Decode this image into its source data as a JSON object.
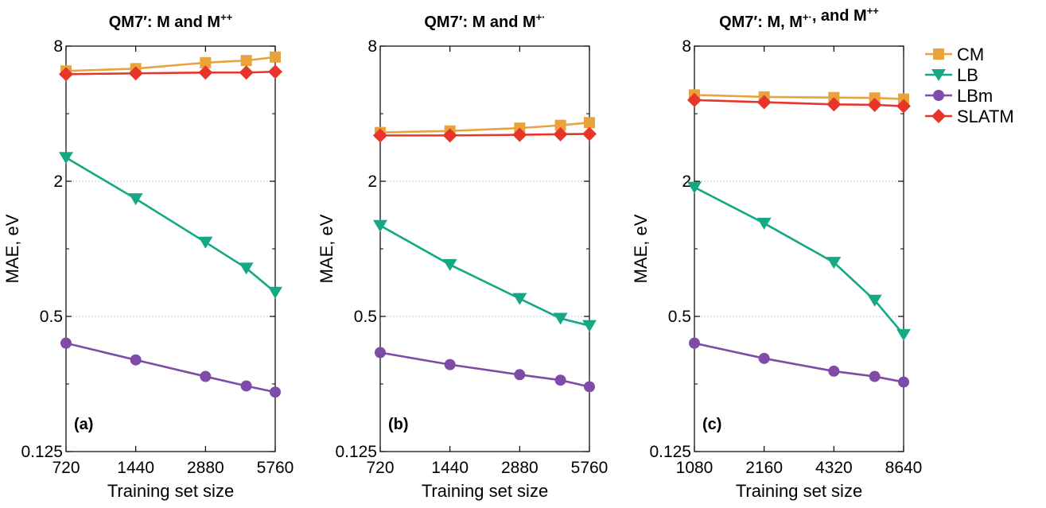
{
  "chart_data": [
    {
      "type": "line",
      "title": "QM7′: M and M++",
      "title_main": "QM7′: M and M",
      "title_sup": "++",
      "panel_label": "(a)",
      "xlabel": "Training set size",
      "ylabel": "MAE, eV",
      "xscale": "log",
      "yscale": "log",
      "xticks": [
        720,
        1440,
        2880,
        5760
      ],
      "yticks": [
        0.125,
        0.5,
        2,
        8
      ],
      "ytick_labels": [
        "0.125",
        "0.5",
        "2",
        "8"
      ],
      "xlim": [
        720,
        5760
      ],
      "ylim": [
        0.125,
        8
      ],
      "grid": "horizontal dotted at 0.5 and 2",
      "x": [
        720,
        1440,
        2880,
        4320,
        5760
      ],
      "series": [
        {
          "name": "CM",
          "values": [
            6.2,
            6.35,
            6.75,
            6.9,
            7.15
          ]
        },
        {
          "name": "LB",
          "values": [
            2.55,
            1.67,
            1.07,
            0.82,
            0.64
          ]
        },
        {
          "name": "LBm",
          "values": [
            0.38,
            0.32,
            0.27,
            0.245,
            0.23
          ]
        },
        {
          "name": "SLATM",
          "values": [
            6.0,
            6.05,
            6.1,
            6.1,
            6.15
          ]
        }
      ]
    },
    {
      "type": "line",
      "title": "QM7′: M and M+·",
      "title_main": "QM7′: M and M",
      "title_sup": "+·",
      "panel_label": "(b)",
      "xlabel": "Training set size",
      "ylabel": "MAE, eV",
      "xscale": "log",
      "yscale": "log",
      "xticks": [
        720,
        1440,
        2880,
        5760
      ],
      "yticks": [
        0.125,
        0.5,
        2,
        8
      ],
      "ytick_labels": [
        "0.125",
        "0.5",
        "2",
        "8"
      ],
      "xlim": [
        720,
        5760
      ],
      "ylim": [
        0.125,
        8
      ],
      "grid": "horizontal dotted at 0.5 and 2",
      "x": [
        720,
        1440,
        2880,
        4320,
        5760
      ],
      "series": [
        {
          "name": "CM",
          "values": [
            3.3,
            3.35,
            3.45,
            3.55,
            3.65
          ]
        },
        {
          "name": "LB",
          "values": [
            1.27,
            0.85,
            0.6,
            0.49,
            0.455
          ]
        },
        {
          "name": "LBm",
          "values": [
            0.345,
            0.305,
            0.275,
            0.26,
            0.243
          ]
        },
        {
          "name": "SLATM",
          "values": [
            3.2,
            3.2,
            3.22,
            3.24,
            3.25
          ]
        }
      ]
    },
    {
      "type": "line",
      "title": "QM7′: M, M+·, and M++",
      "title_main": "QM7′: M, M",
      "title_sup1": "+·",
      "title_mid": ", and M",
      "title_sup2": "++",
      "panel_label": "(c)",
      "xlabel": "Training set size",
      "ylabel": "MAE, eV",
      "xscale": "log",
      "yscale": "log",
      "xticks": [
        1080,
        2160,
        4320,
        8640
      ],
      "yticks": [
        0.125,
        0.5,
        2,
        8
      ],
      "ytick_labels": [
        "0.125",
        "0.5",
        "2",
        "8"
      ],
      "xlim": [
        1080,
        8640
      ],
      "ylim": [
        0.125,
        8
      ],
      "grid": "horizontal dotted at 0.5 and 2",
      "x": [
        1080,
        2160,
        4320,
        6480,
        8640
      ],
      "series": [
        {
          "name": "CM",
          "values": [
            4.85,
            4.75,
            4.72,
            4.7,
            4.65
          ]
        },
        {
          "name": "LB",
          "values": [
            1.88,
            1.3,
            0.87,
            0.59,
            0.415
          ]
        },
        {
          "name": "LBm",
          "values": [
            0.38,
            0.325,
            0.285,
            0.27,
            0.255
          ]
        },
        {
          "name": "SLATM",
          "values": [
            4.6,
            4.5,
            4.4,
            4.38,
            4.32
          ]
        }
      ]
    }
  ],
  "legend": {
    "placement": "right",
    "entries": [
      {
        "name": "CM",
        "color": "#E8A33D",
        "marker": "square"
      },
      {
        "name": "LB",
        "color": "#14A885",
        "marker": "triangle-down"
      },
      {
        "name": "LBm",
        "color": "#7E4BA8",
        "marker": "circle"
      },
      {
        "name": "SLATM",
        "color": "#E8352A",
        "marker": "diamond"
      }
    ]
  }
}
